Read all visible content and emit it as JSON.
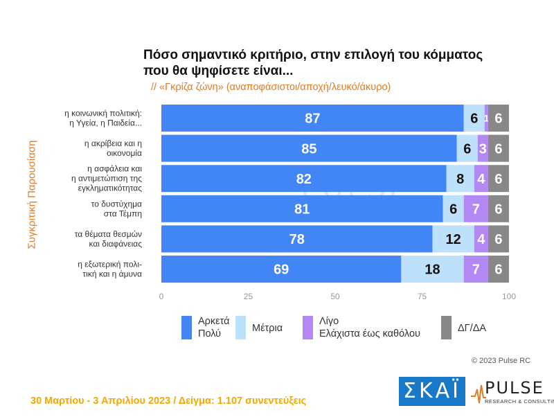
{
  "title_line1": "Πόσο σημαντικό κριτήριο, στην επιλογή του κόμματος",
  "title_line2": "που θα ψηφίσετε είναι...",
  "subtitle": "// «Γκρίζα ζώνη» (αναποφάσιστοι/αποχή/λευκό/άκυρο)",
  "side_label": "Συγκριτική Παρουσίαση",
  "copyright": "© 2023 Pulse RC",
  "footer": "30 Μαρτίου - 3 Απριλίου 2023 / Δείγμα: 1.107 συνεντεύξεις",
  "logos": {
    "skai": "ΣΚΑΪ",
    "pulse": "PULSE",
    "pulse_sub": "RESEARCH & CONSULTING",
    "watermark": "PULSE"
  },
  "colors": {
    "very": "#4285f4",
    "moderate": "#bde0fb",
    "little": "#b388f4",
    "dk": "#888888"
  },
  "chart_data": {
    "type": "bar",
    "orientation": "horizontal",
    "stacked": true,
    "categories": [
      [
        "η κοινωνική πολιτική:",
        "η Υγεία, η Παιδεία..."
      ],
      [
        "η ακρίβεια και η",
        "οικονομία"
      ],
      [
        "η ασφάλεια και",
        "η αντιμετώπιση της",
        "εγκληματικότητας"
      ],
      [
        "το δυστύχημα",
        "στα Τέμπη"
      ],
      [
        "τα θέματα θεσμών",
        "και διαφάνειας"
      ],
      [
        "η εξωτερική πολι-",
        "τική και η άμυνα"
      ]
    ],
    "series": [
      {
        "name": "Αρκετά Πολύ",
        "legend_lines": [
          "Αρκετά",
          "Πολύ"
        ],
        "color": "#4285f4",
        "values": [
          87,
          85,
          82,
          81,
          78,
          69
        ]
      },
      {
        "name": "Μέτρια",
        "legend_lines": [
          "Μέτρια"
        ],
        "color": "#bde0fb",
        "values": [
          6,
          6,
          8,
          6,
          12,
          18
        ]
      },
      {
        "name": "Λίγο Ελάχιστα έως καθόλου",
        "legend_lines": [
          "Λίγο",
          "Ελάχιστα έως καθόλου"
        ],
        "color": "#b388f4",
        "values": [
          1,
          3,
          4,
          7,
          4,
          7
        ]
      },
      {
        "name": "ΔΓ/ΔΑ",
        "legend_lines": [
          "ΔΓ/ΔΑ"
        ],
        "color": "#888888",
        "values": [
          6,
          6,
          6,
          6,
          6,
          6
        ]
      }
    ],
    "xlim": [
      0,
      100
    ],
    "xticks": [
      0,
      25,
      50,
      75,
      100
    ],
    "grid": false
  }
}
